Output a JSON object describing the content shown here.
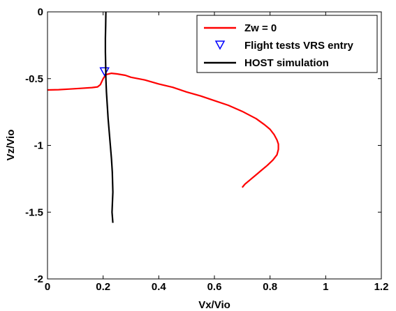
{
  "chart_data": {
    "type": "line",
    "xlabel": "Vx/Vio",
    "ylabel": "Vz/Vio",
    "xlim": [
      0,
      1.2
    ],
    "ylim": [
      -2,
      0
    ],
    "xticks": [
      0,
      0.2,
      0.4,
      0.6,
      0.8,
      1,
      1.2
    ],
    "xtick_labels": [
      "0",
      "0.2",
      "0.4",
      "0.6",
      "0.8",
      "1",
      "1.2"
    ],
    "yticks": [
      -2,
      -1.5,
      -1,
      -0.5,
      0
    ],
    "ytick_labels": [
      "-2",
      "-1.5",
      "-1",
      "-0.5",
      "0"
    ],
    "grid": false,
    "legend_position": "top-right",
    "series": [
      {
        "name": "Zw = 0",
        "kind": "line",
        "color": "#ff0000",
        "x": [
          0.0,
          0.04,
          0.08,
          0.12,
          0.16,
          0.18,
          0.19,
          0.2,
          0.21,
          0.23,
          0.25,
          0.28,
          0.3,
          0.35,
          0.4,
          0.45,
          0.5,
          0.55,
          0.6,
          0.65,
          0.7,
          0.75,
          0.78,
          0.8,
          0.815,
          0.825,
          0.83,
          0.83,
          0.825,
          0.81,
          0.79,
          0.77,
          0.75,
          0.73,
          0.71,
          0.7
        ],
        "y": [
          -0.585,
          -0.583,
          -0.578,
          -0.573,
          -0.567,
          -0.562,
          -0.545,
          -0.5,
          -0.47,
          -0.46,
          -0.465,
          -0.475,
          -0.49,
          -0.51,
          -0.54,
          -0.565,
          -0.6,
          -0.63,
          -0.665,
          -0.7,
          -0.745,
          -0.8,
          -0.845,
          -0.88,
          -0.92,
          -0.96,
          -0.99,
          -1.03,
          -1.07,
          -1.11,
          -1.15,
          -1.185,
          -1.22,
          -1.255,
          -1.29,
          -1.315
        ]
      },
      {
        "name": "Flight tests VRS entry",
        "kind": "marker",
        "marker": "triangle-down",
        "color": "#0000ff",
        "x": [
          0.205
        ],
        "y": [
          -0.44
        ]
      },
      {
        "name": "HOST simulation",
        "kind": "line",
        "color": "#000000",
        "x": [
          0.21,
          0.209,
          0.208,
          0.208,
          0.209,
          0.21,
          0.212,
          0.215,
          0.218,
          0.222,
          0.226,
          0.23,
          0.233,
          0.235,
          0.232,
          0.235
        ],
        "y": [
          0.0,
          -0.1,
          -0.2,
          -0.3,
          -0.4,
          -0.5,
          -0.6,
          -0.7,
          -0.8,
          -0.9,
          -1.0,
          -1.1,
          -1.2,
          -1.35,
          -1.5,
          -1.58
        ]
      }
    ]
  }
}
